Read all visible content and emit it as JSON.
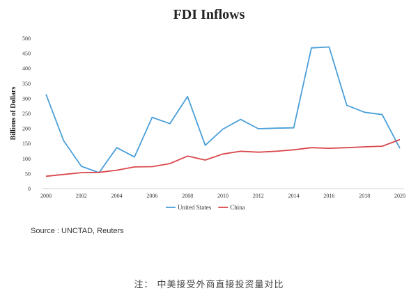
{
  "chart_data": {
    "type": "line",
    "title": "FDI Inflows",
    "xlabel": "",
    "ylabel": "Billions of Dollars",
    "x": [
      2000,
      2001,
      2002,
      2003,
      2004,
      2005,
      2006,
      2007,
      2008,
      2009,
      2010,
      2011,
      2012,
      2013,
      2014,
      2015,
      2016,
      2017,
      2018,
      2019,
      2020
    ],
    "x_ticks": [
      "2000",
      "2002",
      "2004",
      "2006",
      "2008",
      "2010",
      "2012",
      "2014",
      "2016",
      "2018",
      "2020"
    ],
    "ylim": [
      0,
      500
    ],
    "y_ticks": [
      "0",
      "50",
      "100",
      "150",
      "200",
      "250",
      "300",
      "350",
      "400",
      "450",
      "500"
    ],
    "grid": false,
    "legend_placement": "bottom",
    "series": [
      {
        "name": "United States",
        "color": "#4a9fd8",
        "values": [
          314,
          159,
          74,
          53,
          136,
          105,
          237,
          216,
          306,
          144,
          198,
          230,
          199,
          201,
          202,
          468,
          471,
          277,
          254,
          246,
          134
        ]
      },
      {
        "name": "China",
        "color": "#d9474b",
        "values": [
          41,
          47,
          53,
          54,
          61,
          72,
          73,
          83,
          108,
          95,
          115,
          124,
          121,
          124,
          129,
          136,
          134,
          136,
          139,
          141,
          163
        ]
      }
    ]
  },
  "source_text": "Source : UNCTAD, Reuters",
  "note_text": "注： 中美接受外商直接投资量对比"
}
